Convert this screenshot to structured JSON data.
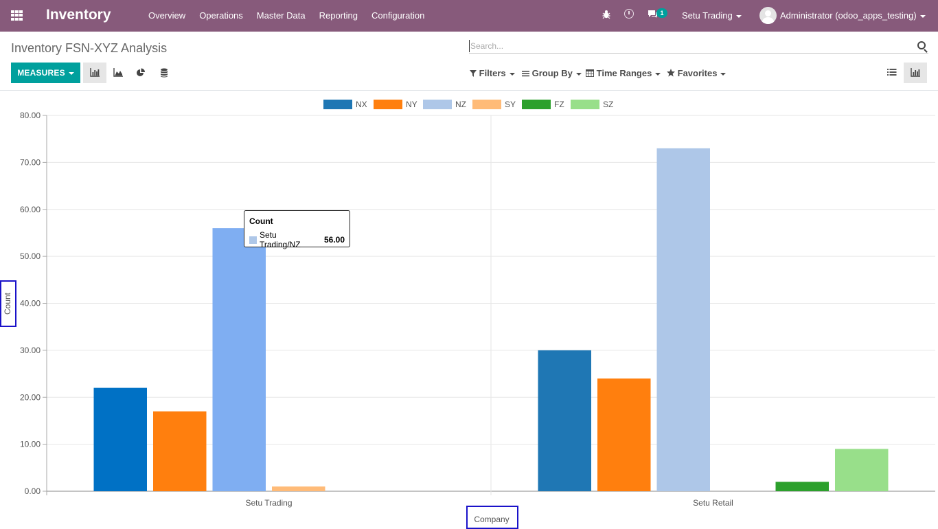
{
  "navbar": {
    "app_title": "Inventory",
    "menu": [
      "Overview",
      "Operations",
      "Master Data",
      "Reporting",
      "Configuration"
    ],
    "notification_count": "1",
    "company": "Setu Trading",
    "user": "Administrator (odoo_apps_testing)"
  },
  "control_panel": {
    "title": "Inventory FSN-XYZ Analysis",
    "search_placeholder": "Search...",
    "measures_label": "MEASURES",
    "filters_label": "Filters",
    "group_by_label": "Group By",
    "time_ranges_label": "Time Ranges",
    "favorites_label": "Favorites"
  },
  "colors": {
    "navbar": "#875a7b",
    "primary": "#00a09d"
  },
  "chart_data": {
    "type": "bar",
    "categories": [
      "Setu Trading",
      "Setu Retail"
    ],
    "series": [
      {
        "name": "NX",
        "values": [
          22,
          30
        ],
        "color": "#1f77b4"
      },
      {
        "name": "NY",
        "values": [
          17,
          24
        ],
        "color": "#ff7f0e"
      },
      {
        "name": "NZ",
        "values": [
          56,
          73
        ],
        "color": "#aec7e8"
      },
      {
        "name": "SY",
        "values": [
          1,
          0
        ],
        "color": "#ffbb78"
      },
      {
        "name": "FZ",
        "values": [
          0,
          2
        ],
        "color": "#2ca02c"
      },
      {
        "name": "SZ",
        "values": [
          0,
          9
        ],
        "color": "#98df8a"
      }
    ],
    "highlighted": {
      "category": 0,
      "series": 2,
      "color": "#7faef2"
    },
    "first_group_first_series_color": "#0071c5",
    "xlabel": "Company",
    "ylabel": "Count",
    "ylim": [
      0,
      80
    ],
    "yticks": [
      "0.00",
      "10.00",
      "20.00",
      "30.00",
      "40.00",
      "50.00",
      "60.00",
      "70.00",
      "80.00"
    ],
    "grid": true,
    "legend": "top-center",
    "tooltip": {
      "title": "Count",
      "label": "Setu Trading/NZ",
      "value": "56.00"
    }
  }
}
